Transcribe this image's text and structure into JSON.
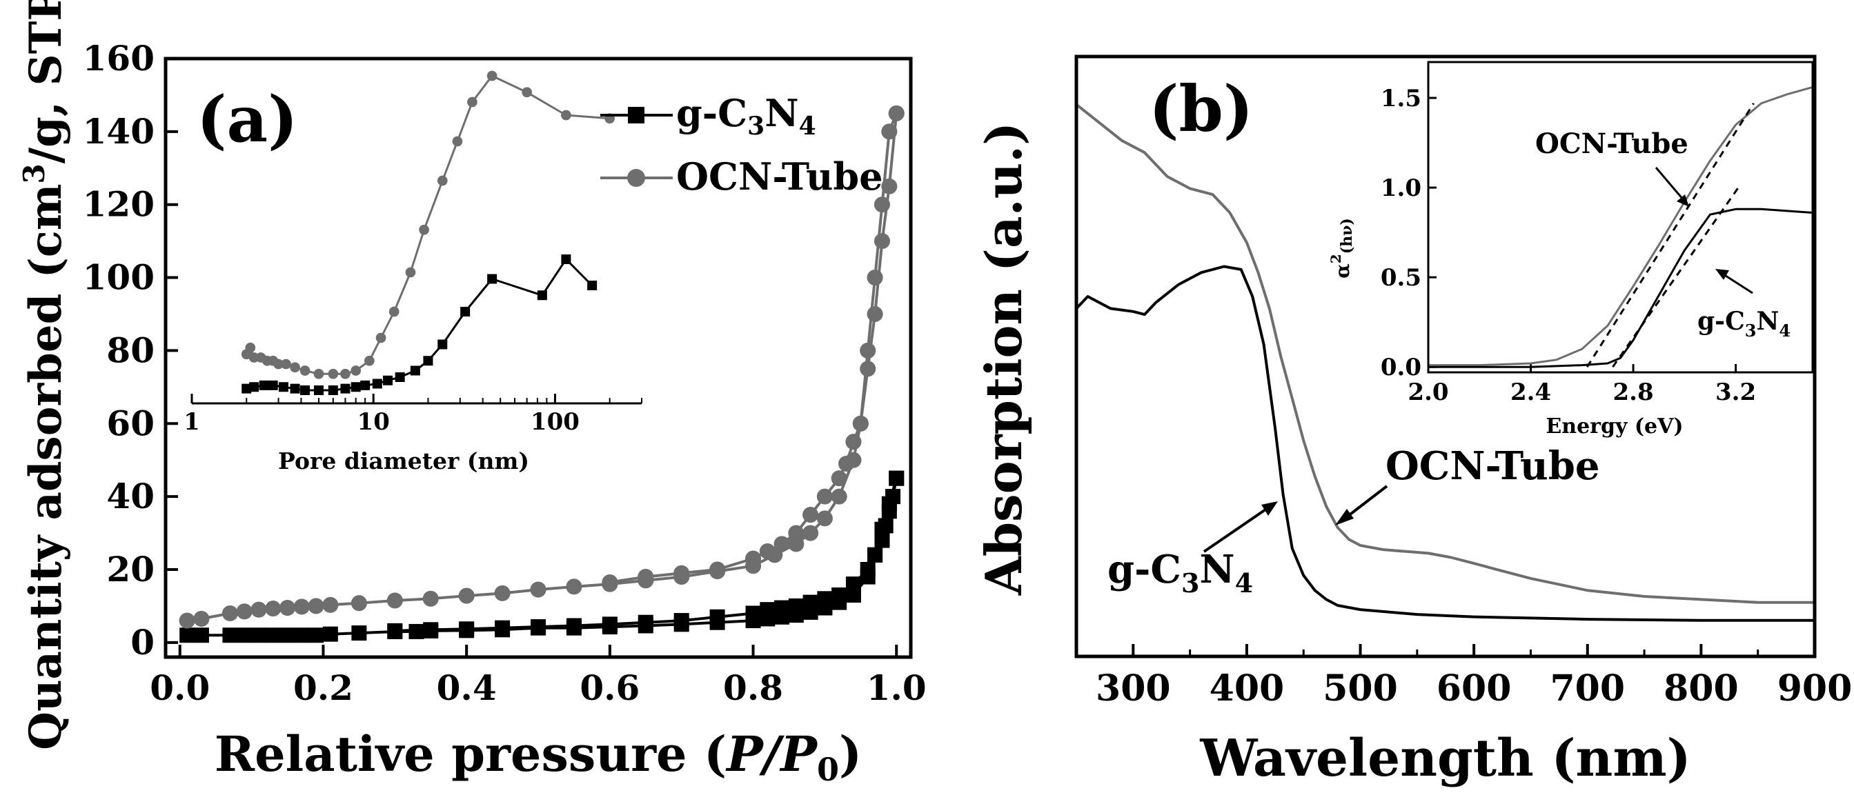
{
  "chart_data": [
    {
      "panel": "(a)",
      "type": "line",
      "title": "",
      "xlabel_parts": [
        "Relative pressure (",
        "P",
        "/",
        "P",
        "0",
        ")"
      ],
      "ylabel_parts": [
        "Quantity adsorbed (cm",
        "3",
        "/g, STP)"
      ],
      "xlim": [
        -0.02,
        1.02
      ],
      "ylim": [
        -4,
        160
      ],
      "xticks": [
        0.0,
        0.2,
        0.4,
        0.6,
        0.8,
        1.0
      ],
      "xticklabels": [
        "0.0",
        "0.2",
        "0.4",
        "0.6",
        "0.8",
        "1.0"
      ],
      "yticks": [
        0,
        20,
        40,
        60,
        80,
        100,
        120,
        140,
        160
      ],
      "yticklabels": [
        "0",
        "20",
        "40",
        "60",
        "80",
        "100",
        "120",
        "140",
        "160"
      ],
      "legend": {
        "placement": "top-right",
        "entries": [
          {
            "parts": [
              "g-C",
              "3",
              "N",
              "4"
            ],
            "color": "#000000",
            "marker": "square"
          },
          {
            "parts": [
              "OCN-Tube"
            ],
            "color": "#6e6e6e",
            "marker": "circle"
          }
        ]
      },
      "series": [
        {
          "name": "g-C3N4 adsorption",
          "color": "#000000",
          "marker": "square",
          "x": [
            0.01,
            0.03,
            0.07,
            0.09,
            0.11,
            0.13,
            0.15,
            0.17,
            0.19,
            0.21,
            0.25,
            0.3,
            0.33,
            0.35,
            0.4,
            0.45,
            0.5,
            0.55,
            0.6,
            0.65,
            0.7,
            0.75,
            0.8,
            0.82,
            0.84,
            0.86,
            0.88,
            0.9,
            0.92,
            0.94,
            0.96,
            0.97,
            0.98,
            0.99,
            1.0
          ],
          "y": [
            2,
            2,
            2,
            2,
            2,
            2,
            2,
            2,
            2,
            2.3,
            2.6,
            3,
            3,
            3.2,
            3.3,
            3.5,
            4,
            4,
            4.3,
            4.6,
            5,
            5.5,
            6,
            6.5,
            7,
            7.5,
            8.3,
            9.5,
            11,
            13,
            18,
            24,
            31,
            38,
            45
          ]
        },
        {
          "name": "g-C3N4 desorption",
          "color": "#000000",
          "marker": "square",
          "x": [
            1.0,
            0.995,
            0.99,
            0.985,
            0.98,
            0.97,
            0.96,
            0.94,
            0.92,
            0.9,
            0.88,
            0.86,
            0.84,
            0.82,
            0.8,
            0.75,
            0.7,
            0.65,
            0.6,
            0.55,
            0.5,
            0.45,
            0.4,
            0.35,
            0.3
          ],
          "y": [
            45,
            40,
            36,
            32,
            28,
            24,
            20,
            16,
            13,
            12,
            11,
            10,
            9.5,
            9,
            8,
            7,
            6,
            5.5,
            5,
            4.6,
            4.3,
            4,
            3.7,
            3.5,
            3.2
          ]
        },
        {
          "name": "OCN-Tube adsorption",
          "color": "#6e6e6e",
          "marker": "circle",
          "x": [
            0.01,
            0.03,
            0.07,
            0.09,
            0.11,
            0.13,
            0.15,
            0.17,
            0.19,
            0.21,
            0.25,
            0.3,
            0.35,
            0.4,
            0.45,
            0.5,
            0.55,
            0.6,
            0.65,
            0.7,
            0.75,
            0.8,
            0.83,
            0.86,
            0.88,
            0.9,
            0.92,
            0.94,
            0.95,
            0.96,
            0.97,
            0.98,
            0.99,
            1.0
          ],
          "y": [
            6,
            6.5,
            8,
            8.5,
            9,
            9.3,
            9.5,
            9.8,
            10,
            10.3,
            10.8,
            11.5,
            12,
            12.8,
            13.5,
            14.5,
            15.3,
            16,
            17,
            18,
            19.5,
            21,
            24,
            27,
            30,
            34,
            40,
            50,
            60,
            80,
            100,
            120,
            140,
            145
          ]
        },
        {
          "name": "OCN-Tube desorption",
          "color": "#6e6e6e",
          "marker": "circle",
          "x": [
            1.0,
            0.99,
            0.98,
            0.97,
            0.96,
            0.95,
            0.94,
            0.93,
            0.92,
            0.9,
            0.88,
            0.86,
            0.84,
            0.82,
            0.8,
            0.75,
            0.7,
            0.65,
            0.6
          ],
          "y": [
            145,
            125,
            110,
            90,
            75,
            60,
            55,
            49,
            45,
            40,
            35,
            30,
            27,
            25,
            23,
            20,
            19,
            18,
            16.5
          ]
        }
      ],
      "inset": {
        "xlabel": "Pore diameter (nm)",
        "xscale": "log",
        "xlim": [
          1,
          300
        ],
        "ylim": [
          0,
          1
        ],
        "xticks": [
          1,
          10,
          100
        ],
        "xticklabels": [
          "1",
          "10",
          "100"
        ],
        "series": [
          {
            "name": "OCN-Tube",
            "color": "#6e6e6e",
            "marker": "circle",
            "x": [
              2,
              2.1,
              2.2,
              2.4,
              2.6,
              2.8,
              3.0,
              3.3,
              3.7,
              4.2,
              5,
              6,
              7,
              8,
              9.5,
              11,
              13,
              16,
              19,
              24,
              29,
              35,
              45,
              70,
              115,
              200
            ],
            "y": [
              0.15,
              0.17,
              0.14,
              0.14,
              0.13,
              0.13,
              0.12,
              0.12,
              0.11,
              0.1,
              0.09,
              0.09,
              0.09,
              0.1,
              0.13,
              0.2,
              0.28,
              0.4,
              0.53,
              0.68,
              0.8,
              0.92,
              1.0,
              0.95,
              0.88,
              0.87
            ]
          },
          {
            "name": "g-C3N4",
            "color": "#000000",
            "marker": "square",
            "x": [
              2,
              2.2,
              2.5,
              2.8,
              3.2,
              3.7,
              4.2,
              5,
              6,
              7,
              8,
              9,
              10.5,
              12,
              14,
              17,
              20,
              24,
              32,
              45,
              85,
              115,
              160
            ],
            "y": [
              0.045,
              0.05,
              0.055,
              0.055,
              0.05,
              0.045,
              0.04,
              0.04,
              0.04,
              0.045,
              0.05,
              0.055,
              0.06,
              0.07,
              0.08,
              0.1,
              0.13,
              0.18,
              0.28,
              0.38,
              0.33,
              0.44,
              0.36
            ]
          }
        ]
      }
    },
    {
      "panel": "(b)",
      "type": "line",
      "title": "",
      "xlabel": "Wavelength (nm)",
      "ylabel": "Absorption (a.u.)",
      "xlim": [
        250,
        900
      ],
      "ylim": [
        0,
        1
      ],
      "xticks": [
        300,
        400,
        500,
        600,
        700,
        800,
        900
      ],
      "xticklabels": [
        "300",
        "400",
        "500",
        "600",
        "700",
        "800",
        "900"
      ],
      "annotations": {
        "ocn": {
          "parts": [
            "OCN-Tube"
          ],
          "color": "#6e6e6e"
        },
        "gcn": {
          "parts": [
            "g-C",
            "3",
            "N",
            "4"
          ],
          "color": "#000000"
        }
      },
      "series": [
        {
          "name": "OCN-Tube",
          "color": "#6e6e6e",
          "x": [
            250,
            270,
            290,
            310,
            330,
            350,
            370,
            385,
            400,
            410,
            420,
            430,
            440,
            450,
            460,
            470,
            480,
            490,
            500,
            520,
            540,
            560,
            580,
            600,
            620,
            650,
            680,
            700,
            750,
            800,
            850,
            900
          ],
          "y": [
            0.92,
            0.89,
            0.86,
            0.84,
            0.8,
            0.78,
            0.77,
            0.74,
            0.69,
            0.64,
            0.58,
            0.5,
            0.43,
            0.36,
            0.3,
            0.25,
            0.215,
            0.195,
            0.185,
            0.178,
            0.175,
            0.172,
            0.165,
            0.155,
            0.145,
            0.13,
            0.118,
            0.11,
            0.1,
            0.095,
            0.09,
            0.09
          ]
        },
        {
          "name": "g-C3N4",
          "color": "#000000",
          "x": [
            250,
            260,
            280,
            300,
            310,
            320,
            340,
            360,
            380,
            395,
            405,
            415,
            425,
            432,
            440,
            450,
            460,
            470,
            480,
            500,
            550,
            600,
            700,
            800,
            900
          ],
          "y": [
            0.58,
            0.6,
            0.58,
            0.575,
            0.57,
            0.59,
            0.62,
            0.64,
            0.65,
            0.645,
            0.6,
            0.52,
            0.38,
            0.27,
            0.18,
            0.135,
            0.11,
            0.095,
            0.085,
            0.078,
            0.07,
            0.066,
            0.062,
            0.06,
            0.06
          ]
        }
      ],
      "inset": {
        "xlabel": "Energy (eV)",
        "ylabel_base": "α",
        "ylabel_sup": "2",
        "ylabel_sub": "(hν)",
        "xlim": [
          2.0,
          3.5
        ],
        "ylim": [
          -0.03,
          1.7
        ],
        "xticks": [
          2.0,
          2.4,
          2.8,
          3.2
        ],
        "xticklabels": [
          "2.0",
          "2.4",
          "2.8",
          "3.2"
        ],
        "yticks": [
          0.0,
          0.5,
          1.0,
          1.5
        ],
        "yticklabels": [
          "0.0",
          "0.5",
          "1.0",
          "1.5"
        ],
        "annotations": {
          "ocn": {
            "parts": [
              "OCN-Tube"
            ]
          },
          "gcn": {
            "parts": [
              "g-C",
              "3",
              "N",
              "4"
            ]
          }
        },
        "series": [
          {
            "name": "OCN-Tube",
            "color": "#6e6e6e",
            "x": [
              2.0,
              2.2,
              2.4,
              2.5,
              2.6,
              2.7,
              2.8,
              2.9,
              3.0,
              3.1,
              3.2,
              3.3,
              3.4,
              3.5
            ],
            "y": [
              0.01,
              0.01,
              0.02,
              0.04,
              0.1,
              0.23,
              0.45,
              0.68,
              0.92,
              1.15,
              1.35,
              1.47,
              1.52,
              1.56
            ]
          },
          {
            "name": "g-C3N4",
            "color": "#000000",
            "x": [
              2.0,
              2.4,
              2.6,
              2.7,
              2.75,
              2.8,
              2.9,
              3.0,
              3.1,
              3.2,
              3.3,
              3.4,
              3.5
            ],
            "y": [
              0.0,
              0.0,
              0.01,
              0.02,
              0.05,
              0.15,
              0.4,
              0.65,
              0.85,
              0.88,
              0.88,
              0.87,
              0.86
            ]
          }
        ],
        "fits": [
          {
            "name": "OCN-Tube tangent",
            "x": [
              2.62,
              3.27
            ],
            "y": [
              0.0,
              1.47
            ]
          },
          {
            "name": "g-C3N4 tangent",
            "x": [
              2.72,
              3.22
            ],
            "y": [
              0.0,
              1.02
            ]
          }
        ]
      }
    }
  ]
}
